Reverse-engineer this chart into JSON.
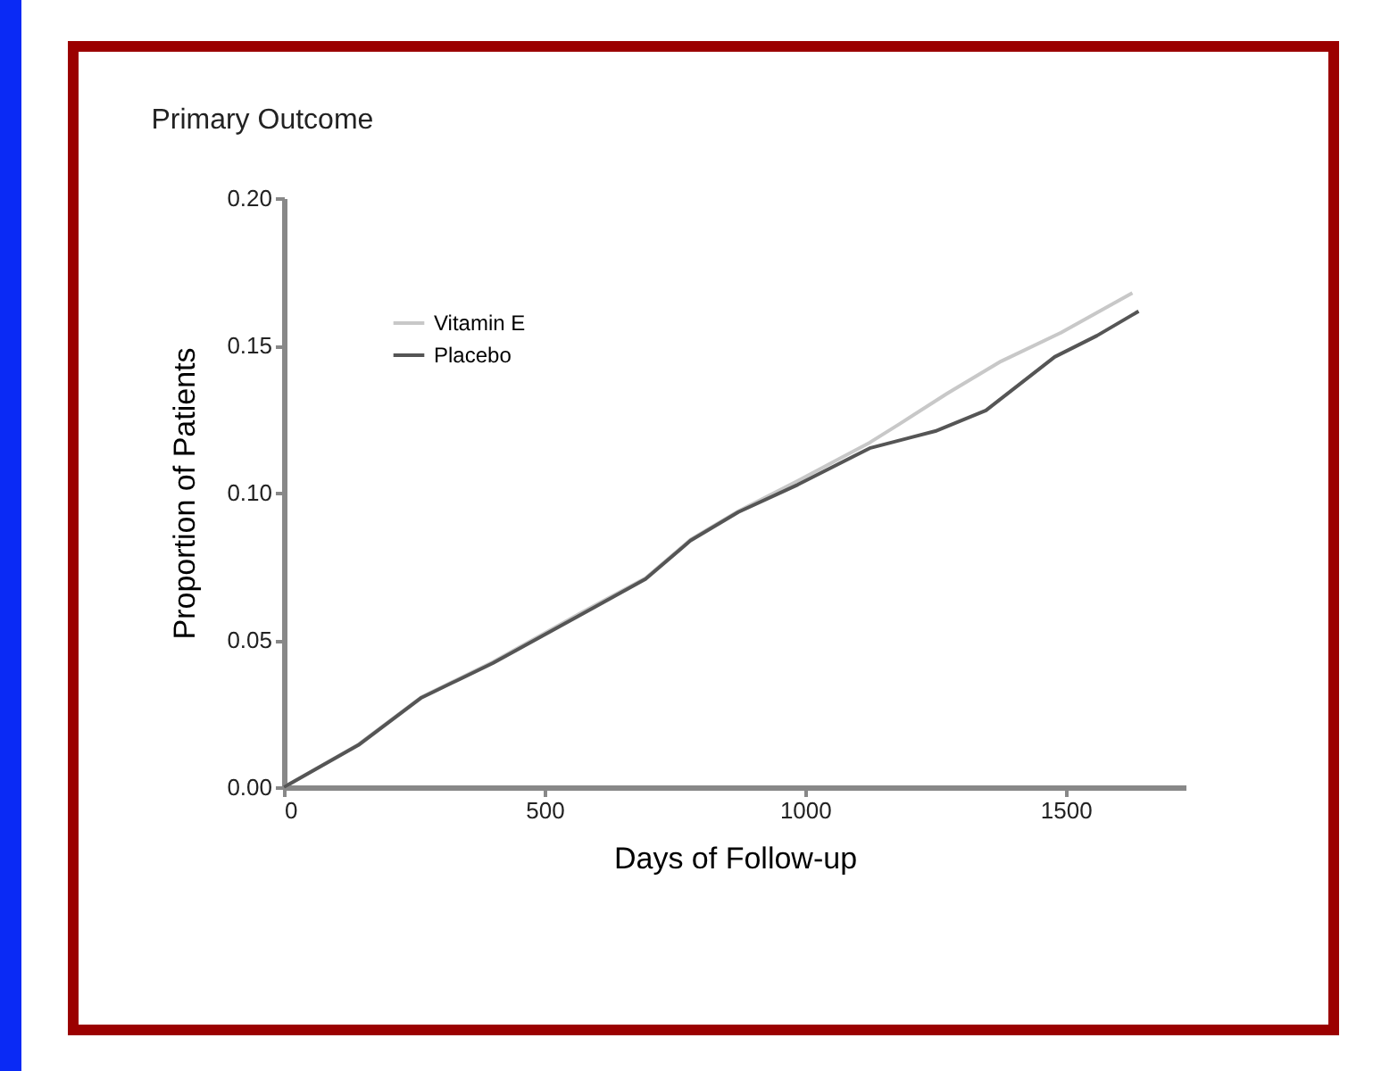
{
  "chart_data": {
    "type": "line",
    "title": "Primary Outcome",
    "xlabel": "Days of Follow-up",
    "ylabel": "Proportion of Patients",
    "xlim": [
      0,
      1730
    ],
    "xticks": [
      0,
      500,
      1000,
      1500
    ],
    "ylim": [
      0,
      0.2
    ],
    "yticks": [
      {
        "value": 0,
        "label": "0.00"
      },
      {
        "value": 0.05,
        "label": "0.05"
      },
      {
        "value": 0.1,
        "label": "0.10"
      },
      {
        "value": 0.15,
        "label": "0.15"
      },
      {
        "value": 0.2,
        "label": "0.20"
      }
    ],
    "grid": false,
    "legend": "top left",
    "marker": "none",
    "line_style": "solid",
    "series": [
      {
        "name": "Vitamin E",
        "color": "#c8c8c8",
        "x": [
          0,
          143,
          264,
          401,
          573,
          694,
          780,
          872,
          986,
          1124,
          1181,
          1273,
          1376,
          1491,
          1628
        ],
        "values": [
          0,
          0.0145,
          0.0306,
          0.0425,
          0.0595,
          0.071,
          0.084,
          0.0937,
          0.104,
          0.117,
          0.1233,
          0.1337,
          0.1446,
          0.1543,
          0.1678
        ]
      },
      {
        "name": "Placebo",
        "color": "#555555",
        "x": [
          0,
          143,
          264,
          401,
          573,
          694,
          780,
          872,
          986,
          1124,
          1250,
          1347,
          1479,
          1560,
          1640
        ],
        "values": [
          0,
          0.0143,
          0.0304,
          0.0421,
          0.0589,
          0.0707,
          0.0837,
          0.0934,
          0.1027,
          0.1151,
          0.1209,
          0.1279,
          0.1461,
          0.1533,
          0.1616
        ]
      }
    ]
  }
}
